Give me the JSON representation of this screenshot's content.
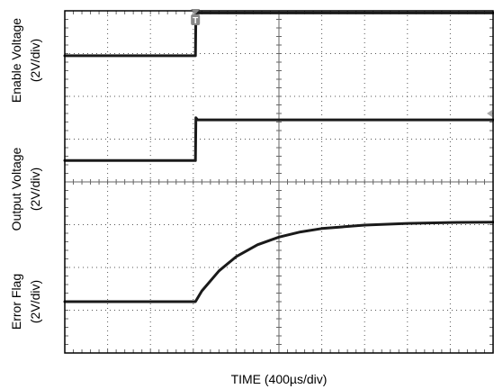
{
  "chart_data": {
    "type": "line",
    "title": "",
    "xlabel": "TIME (400µs/div)",
    "x_divisions": 10,
    "y_divisions": 8,
    "grid": true,
    "x_unit": "div",
    "y_unit": "div",
    "xlim": [
      0,
      10
    ],
    "ylim": [
      0,
      8
    ],
    "channel_labels": [
      {
        "line1": "Enable Voltage",
        "line2": "(2V/div)"
      },
      {
        "line1": "Output Voltage",
        "line2": "(2V/div)"
      },
      {
        "line1": "Error Flag",
        "line2": "(2V/div)"
      }
    ],
    "series": [
      {
        "name": "Enable Voltage",
        "color": "#1a1a1a",
        "x": [
          0,
          3.05,
          3.06,
          10
        ],
        "y": [
          6.95,
          6.95,
          7.95,
          7.95
        ]
      },
      {
        "name": "Output Voltage",
        "color": "#1a1a1a",
        "x": [
          0,
          3.05,
          3.06,
          3.1,
          10
        ],
        "y": [
          4.5,
          4.5,
          5.5,
          5.45,
          5.45
        ]
      },
      {
        "name": "Error Flag",
        "color": "#1a1a1a",
        "x": [
          0,
          3.05,
          3.2,
          3.6,
          4.0,
          4.5,
          5.0,
          5.5,
          6.0,
          7.0,
          8.0,
          9.0,
          10
        ],
        "y": [
          1.2,
          1.2,
          1.45,
          1.92,
          2.25,
          2.53,
          2.71,
          2.83,
          2.91,
          2.99,
          3.03,
          3.05,
          3.06
        ]
      }
    ],
    "markers": {
      "trigger_label": "T"
    }
  }
}
